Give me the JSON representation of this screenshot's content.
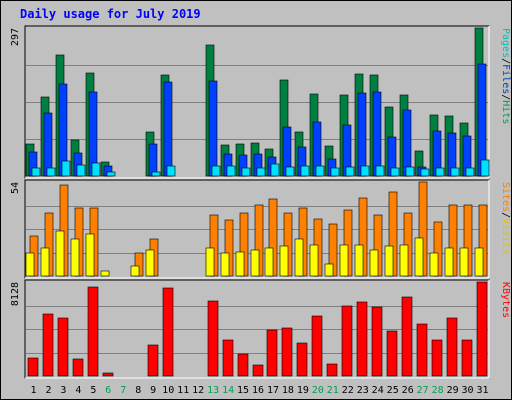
{
  "chart_data": {
    "type": "bar",
    "title": "Daily usage for July 2019",
    "categories": [
      "1",
      "2",
      "3",
      "4",
      "5",
      "6",
      "7",
      "8",
      "9",
      "10",
      "11",
      "12",
      "13",
      "14",
      "15",
      "16",
      "17",
      "18",
      "19",
      "20",
      "21",
      "22",
      "23",
      "24",
      "25",
      "26",
      "27",
      "28",
      "29",
      "30",
      "31"
    ],
    "weekend_days": [
      "6",
      "7",
      "13",
      "14",
      "20",
      "21",
      "27",
      "28"
    ],
    "panels": [
      {
        "id": "hits",
        "max_label": "297",
        "ymax": 297,
        "legend": [
          {
            "text": "Pages",
            "color": "#00C0C0"
          },
          {
            "text": "Files",
            "color": "#0040C0"
          },
          {
            "text": "Hits",
            "color": "#00A050"
          }
        ],
        "series": [
          {
            "name": "Hits",
            "color": "#008040",
            "values": [
              65,
              158,
              243,
              73,
              206,
              28,
              0,
              0,
              88,
              202,
              0,
              0,
              262,
              62,
              64,
              67,
              54,
              193,
              89,
              165,
              60,
              162,
              205,
              202,
              138,
              162,
              51,
              122,
              120,
              106,
              297
            ]
          },
          {
            "name": "Files",
            "color": "#0040FF",
            "values": [
              48,
              127,
              185,
              46,
              168,
              20,
              0,
              0,
              64,
              189,
              0,
              0,
              190,
              44,
              42,
              44,
              38,
              99,
              59,
              108,
              34,
              102,
              166,
              168,
              78,
              133,
              18,
              90,
              86,
              81,
              225
            ]
          },
          {
            "name": "Pages",
            "color": "#00E0FF",
            "values": [
              16,
              16,
              30,
              22,
              26,
              9,
              0,
              0,
              9,
              20,
              0,
              0,
              20,
              20,
              16,
              16,
              25,
              18,
              20,
              20,
              16,
              18,
              20,
              20,
              16,
              18,
              14,
              16,
              16,
              16,
              32
            ]
          }
        ]
      },
      {
        "id": "visits",
        "max_label": "54",
        "ymax": 54,
        "legend": [
          {
            "text": "Sites",
            "color": "#FF8000"
          },
          {
            "text": "Visits",
            "color": "#E0C000"
          }
        ],
        "series": [
          {
            "name": "Visits",
            "color": "#FF8000",
            "values": [
              23,
              36,
              52,
              39,
              39,
              0,
              0,
              13,
              21,
              0,
              0,
              0,
              35,
              32,
              36,
              41,
              44,
              36,
              39,
              33,
              30,
              38,
              45,
              35,
              48,
              36,
              54,
              31,
              41,
              41,
              41
            ]
          },
          {
            "name": "Sites",
            "color": "#FFFF00",
            "values": [
              13,
              16,
              26,
              21,
              24,
              3,
              0,
              6,
              15,
              0,
              0,
              0,
              16,
              13,
              14,
              15,
              16,
              17,
              21,
              18,
              7,
              18,
              18,
              15,
              17,
              18,
              22,
              13,
              16,
              16,
              16
            ]
          }
        ]
      },
      {
        "id": "kbytes",
        "max_label": "8128",
        "ymax": 8128,
        "legend": [
          {
            "text": "KBytes",
            "color": "#FF0000"
          }
        ],
        "series": [
          {
            "name": "KBytes",
            "color": "#FF0000",
            "values": [
              1561,
              5396,
              5019,
              1429,
              7677,
              283,
              0,
              0,
              2700,
              7587,
              0,
              0,
              6477,
              3072,
              1877,
              912,
              3990,
              4164,
              2850,
              5164,
              1054,
              6053,
              6395,
              5950,
              3853,
              6817,
              4456,
              3136,
              5002,
              3148,
              8128
            ]
          }
        ]
      }
    ]
  },
  "colors": {
    "background": "#C0C0C0",
    "plot_bg": "#C0C0C0",
    "title": "#0000FF",
    "weekday_label": "#000000",
    "weekend_label": "#00A050"
  }
}
